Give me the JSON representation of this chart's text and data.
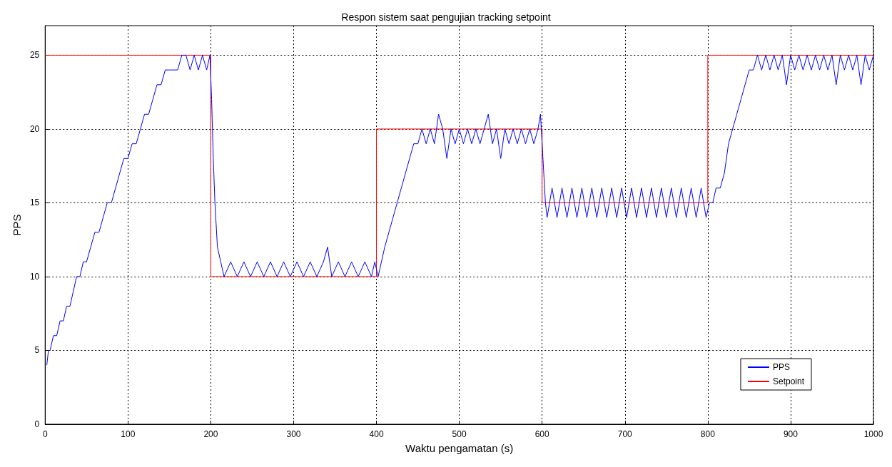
{
  "chart_data": {
    "type": "line",
    "title": "Respon sistem saat pengujian tracking setpoint",
    "xlabel": "Waktu pengamatan (s)",
    "ylabel": "PPS",
    "xlim": [
      0,
      1000
    ],
    "xticks": [
      0,
      100,
      200,
      300,
      400,
      500,
      600,
      700,
      800,
      900,
      1000
    ],
    "ylim": [
      0,
      27
    ],
    "yticks": [
      0,
      5,
      10,
      15,
      20,
      25
    ],
    "grid": true,
    "legend": "bottom right",
    "marker": "none",
    "line_style": "solid",
    "series": [
      {
        "name": "PPS",
        "color": "#0000ff",
        "x": [
          2,
          4,
          6,
          10,
          14,
          18,
          22,
          26,
          30,
          34,
          38,
          42,
          46,
          50,
          55,
          60,
          65,
          70,
          75,
          80,
          85,
          90,
          95,
          100,
          105,
          110,
          115,
          120,
          125,
          130,
          135,
          140,
          145,
          150,
          155,
          160,
          165,
          170,
          175,
          180,
          185,
          190,
          195,
          199,
          201,
          203,
          205,
          208,
          212,
          216,
          224,
          232,
          240,
          248,
          256,
          264,
          272,
          280,
          288,
          296,
          304,
          312,
          320,
          328,
          336,
          341,
          346,
          354,
          362,
          370,
          378,
          386,
          394,
          398,
          402,
          406,
          410,
          415,
          420,
          425,
          430,
          435,
          440,
          445,
          450,
          455,
          460,
          465,
          470,
          475,
          480,
          485,
          490,
          495,
          500,
          505,
          510,
          515,
          520,
          525,
          530,
          535,
          540,
          545,
          550,
          555,
          560,
          565,
          570,
          575,
          580,
          585,
          590,
          595,
          598,
          600,
          602,
          604,
          606,
          612,
          618,
          624,
          630,
          636,
          642,
          648,
          654,
          660,
          666,
          672,
          678,
          684,
          690,
          696,
          702,
          708,
          714,
          720,
          726,
          732,
          738,
          744,
          750,
          756,
          762,
          768,
          774,
          780,
          786,
          792,
          798,
          802,
          806,
          810,
          815,
          820,
          825,
          830,
          835,
          840,
          845,
          850,
          855,
          860,
          865,
          870,
          875,
          880,
          885,
          890,
          895,
          900,
          905,
          910,
          915,
          920,
          925,
          930,
          935,
          940,
          945,
          950,
          955,
          960,
          965,
          970,
          975,
          980,
          985,
          990,
          995,
          1000
        ],
        "values": [
          4,
          5,
          5,
          6,
          6,
          7,
          7,
          8,
          8,
          9,
          10,
          10,
          11,
          11,
          12,
          13,
          13,
          14,
          15,
          15,
          16,
          17,
          18,
          18,
          19,
          19,
          20,
          21,
          21,
          22,
          23,
          23,
          24,
          24,
          24,
          24,
          25,
          25,
          24,
          25,
          24,
          25,
          24,
          25,
          22,
          18,
          15,
          12,
          11,
          10,
          11,
          10,
          11,
          10,
          11,
          10,
          11,
          10,
          11,
          10,
          11,
          10,
          11,
          10,
          11,
          12,
          10,
          11,
          10,
          11,
          10,
          11,
          10,
          11,
          10,
          11,
          12,
          13,
          14,
          15,
          16,
          17,
          18,
          19,
          19,
          20,
          19,
          20,
          19,
          21,
          20,
          18,
          20,
          19,
          20,
          19,
          20,
          19,
          20,
          19,
          20,
          21,
          19,
          20,
          18,
          20,
          19,
          20,
          19,
          20,
          19,
          20,
          19,
          20,
          21,
          19,
          17,
          15,
          14,
          16,
          14,
          16,
          14,
          16,
          14,
          16,
          14,
          16,
          14,
          16,
          14,
          16,
          14,
          16,
          14,
          16,
          14,
          16,
          14,
          16,
          14,
          16,
          14,
          16,
          14,
          16,
          14,
          16,
          14,
          16,
          14,
          15,
          15,
          16,
          16,
          17,
          19,
          20,
          21,
          22,
          23,
          24,
          24,
          25,
          24,
          25,
          24,
          25,
          24,
          25,
          23,
          25,
          24,
          25,
          24,
          25,
          24,
          25,
          24,
          25,
          24,
          25,
          23,
          25,
          24,
          25,
          24,
          25,
          23,
          25,
          24,
          25
        ]
      },
      {
        "name": "Setpoint",
        "color": "#ff0000",
        "x": [
          0,
          200,
          200,
          400,
          400,
          600,
          600,
          800,
          800,
          1000
        ],
        "values": [
          25,
          25,
          10,
          10,
          20,
          20,
          15,
          15,
          25,
          25
        ]
      }
    ]
  }
}
